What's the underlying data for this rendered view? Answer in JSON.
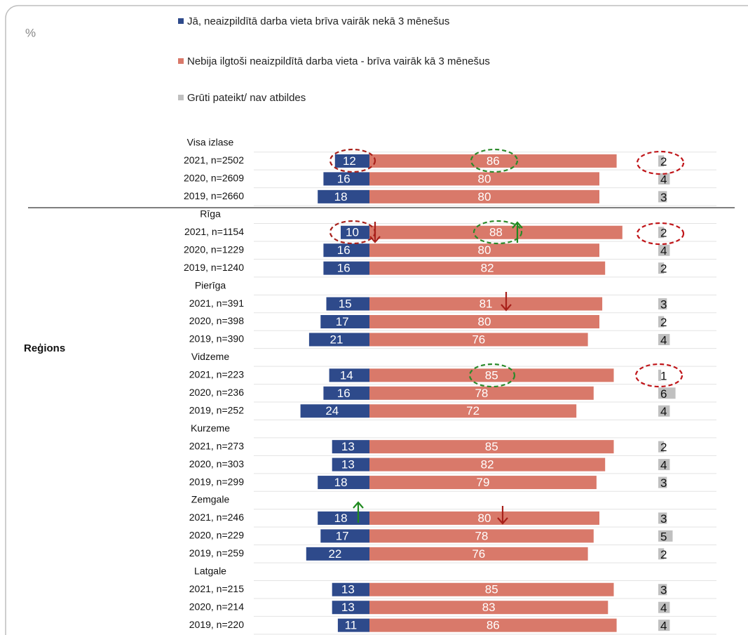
{
  "chart_data": {
    "type": "diverging_bar",
    "unit": "%",
    "group_label": "Reģions",
    "categories": [
      "Visa izlase",
      "2021, n=2502",
      "2020, n=2609",
      "2019, n=2660",
      "Rīga",
      "2021, n=1154",
      "2020, n=1229",
      "2019, n=1240",
      "Pierīga",
      "2021, n=391",
      "2020, n=398",
      "2019, n=390",
      "Vidzeme",
      "2021, n=223",
      "2020, n=236",
      "2019, n=252",
      "Kurzeme",
      "2021, n=273",
      "2020, n=303",
      "2019, n=299",
      "Zemgale",
      "2021, n=246",
      "2020, n=229",
      "2019, n=259",
      "Latgale",
      "2021, n=215",
      "2020, n=214",
      "2019, n=220"
    ],
    "series": [
      {
        "name": "Jā, neaizpildītā darba vieta brīva vairāk nekā 3 mēnešus",
        "color": "#2e4a8b",
        "values": [
          null,
          12,
          16,
          18,
          null,
          10,
          16,
          16,
          null,
          15,
          17,
          21,
          null,
          14,
          16,
          24,
          null,
          13,
          13,
          18,
          null,
          18,
          17,
          22,
          null,
          13,
          13,
          11
        ]
      },
      {
        "name": "Nebija ilgtoši neaizpildītā darba vieta - brīva vairāk kā 3 mēnešus",
        "color": "#d9796a",
        "values": [
          null,
          86,
          80,
          80,
          null,
          88,
          80,
          82,
          null,
          81,
          80,
          76,
          null,
          85,
          78,
          72,
          null,
          85,
          82,
          79,
          null,
          80,
          78,
          76,
          null,
          85,
          83,
          86
        ]
      },
      {
        "name": "Grūti pateikt/ nav atbildes",
        "color": "#c0c0c0",
        "values": [
          null,
          2,
          4,
          3,
          null,
          2,
          4,
          2,
          null,
          3,
          2,
          4,
          null,
          1,
          6,
          4,
          null,
          2,
          4,
          3,
          null,
          3,
          5,
          2,
          null,
          3,
          4,
          4
        ]
      }
    ],
    "grid": true
  }
}
